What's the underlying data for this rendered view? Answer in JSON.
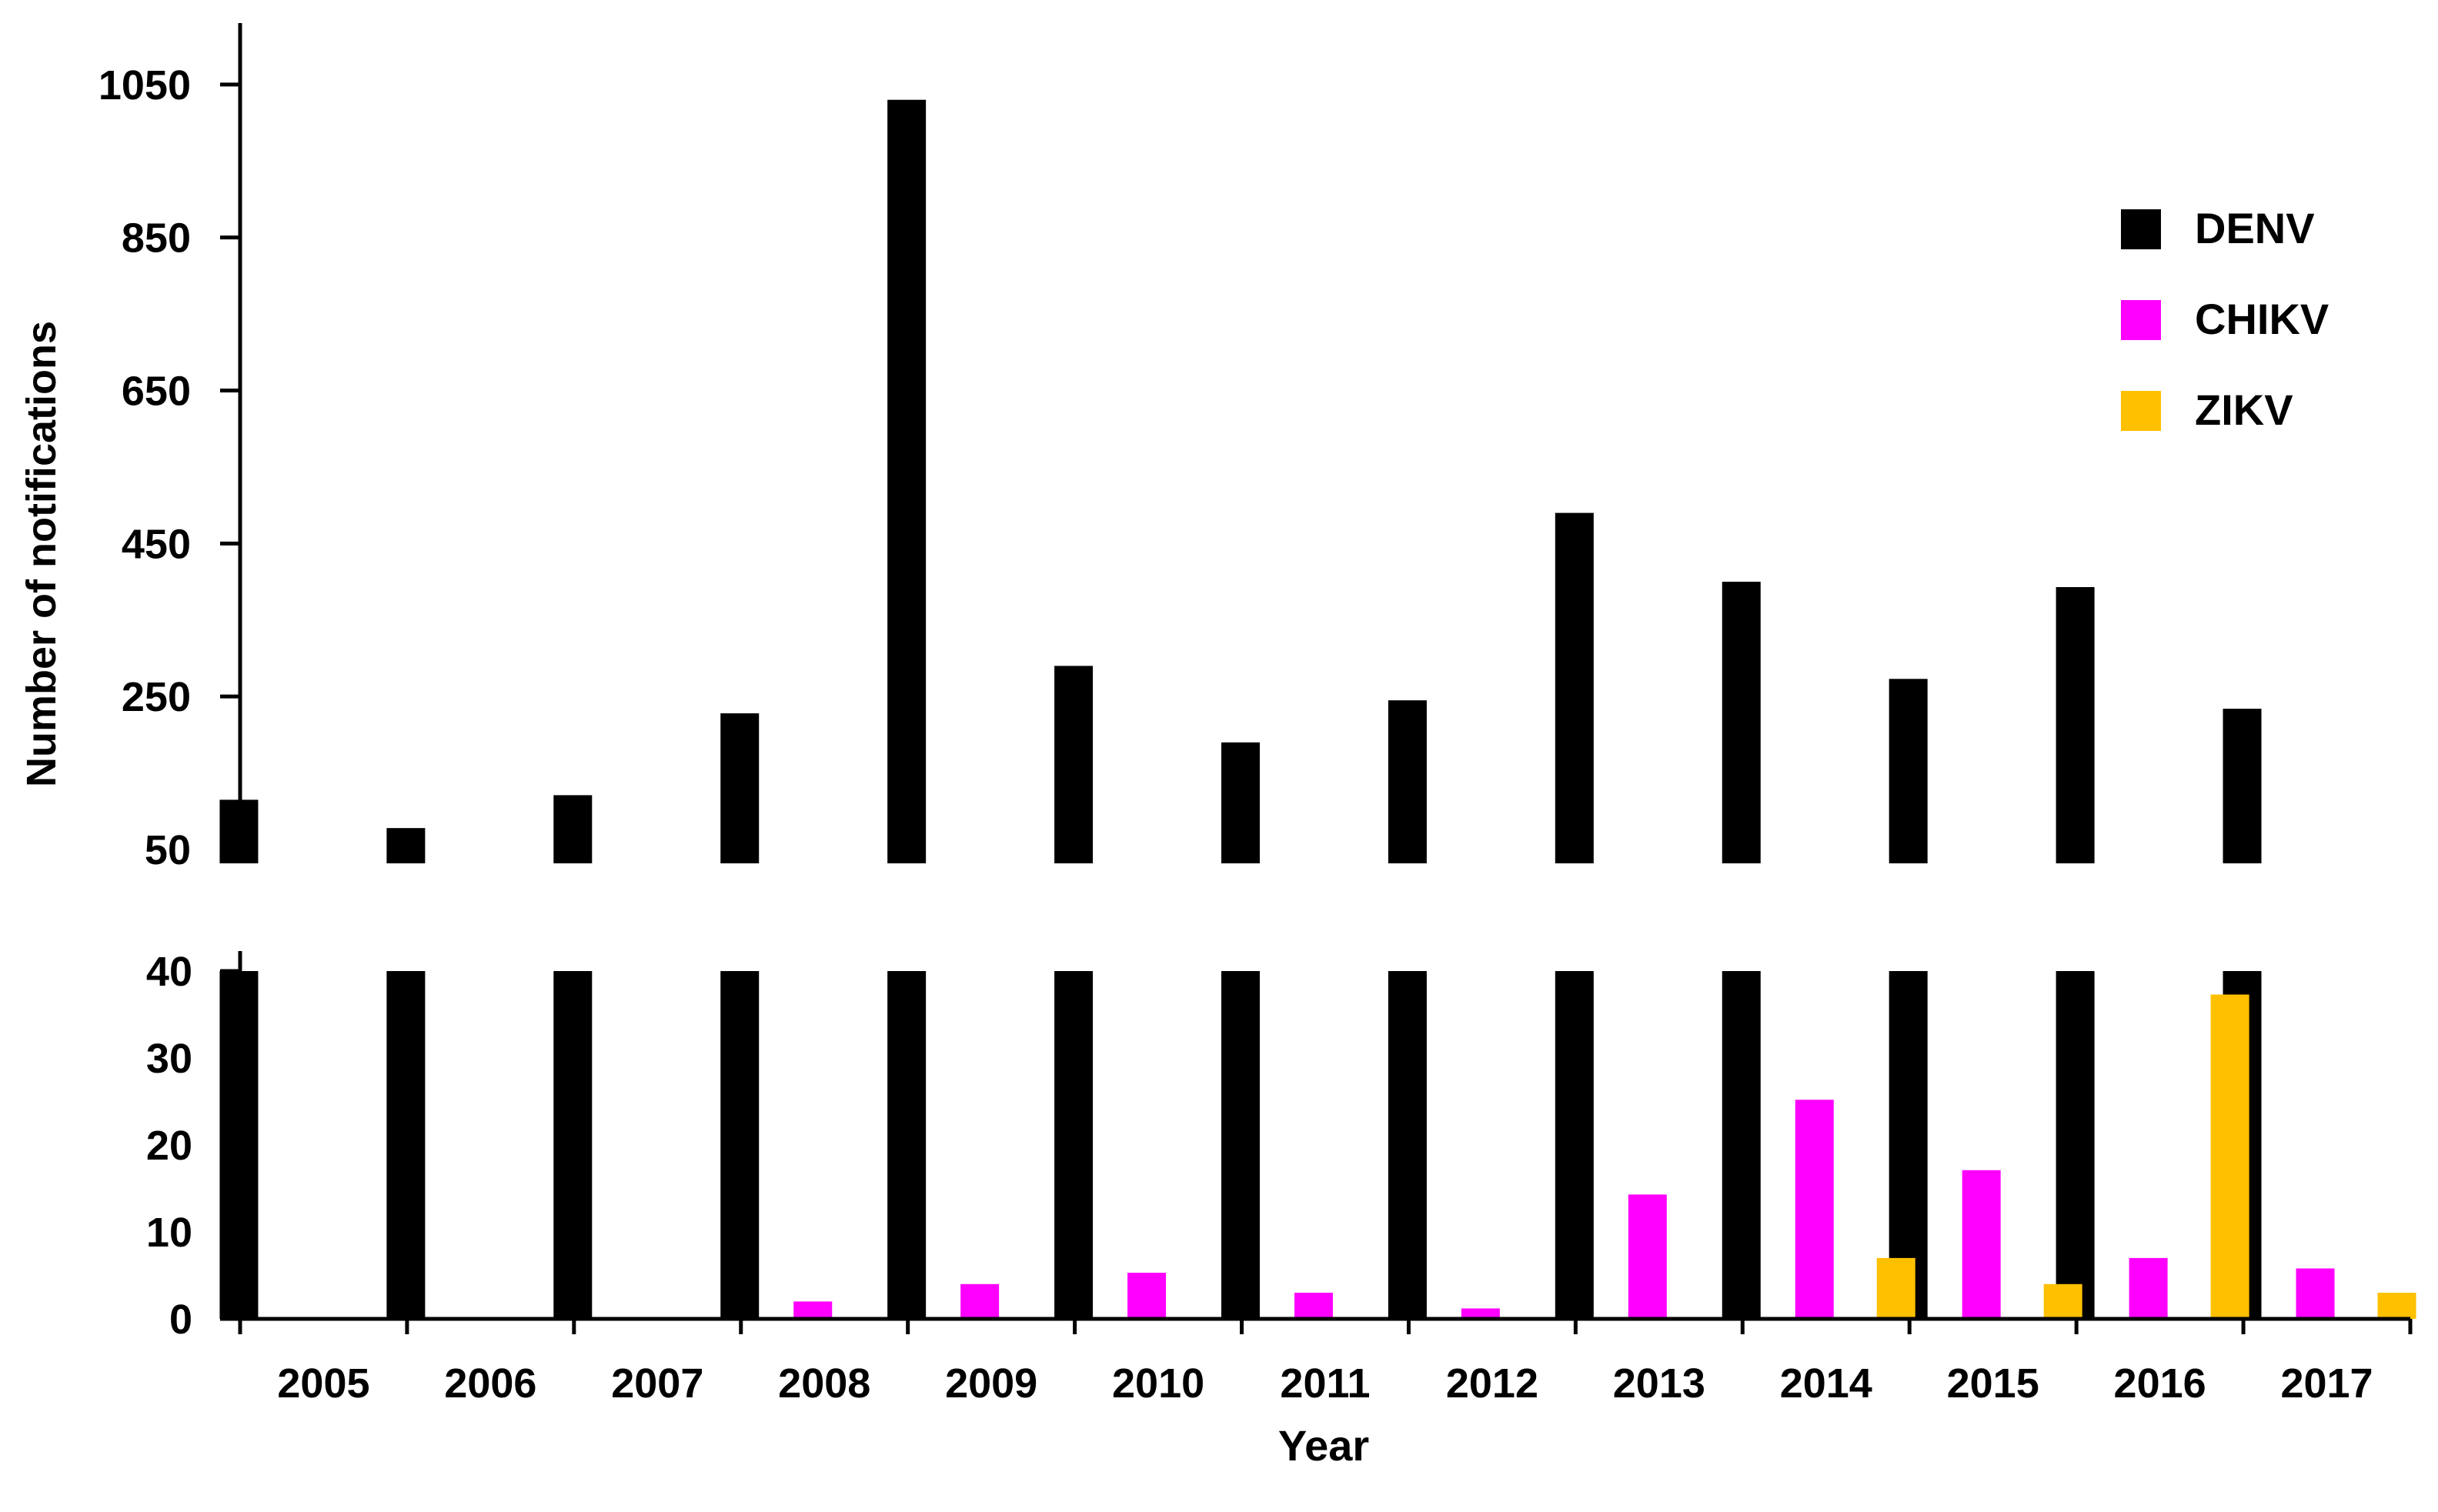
{
  "chart_data": {
    "type": "bar",
    "xlabel": "Year",
    "ylabel": "Number of notifications",
    "categories": [
      "2005",
      "2006",
      "2007",
      "2008",
      "2009",
      "2010",
      "2011",
      "2012",
      "2013",
      "2014",
      "2015",
      "2016",
      "2017"
    ],
    "series": [
      {
        "name": "DENV",
        "color": "#000000",
        "values": [
          115,
          78,
          121,
          228,
          1030,
          290,
          190,
          245,
          490,
          400,
          273,
          393,
          234
        ]
      },
      {
        "name": "CHIKV",
        "color": "#ff00ff",
        "values": [
          0,
          0,
          0,
          2,
          4,
          5.3,
          3,
          1.2,
          14.3,
          25.2,
          17.1,
          7,
          5.8
        ]
      },
      {
        "name": "ZIKV",
        "color": "#ffc000",
        "values": [
          0,
          0,
          0,
          0,
          0,
          0,
          0,
          0,
          0,
          7,
          4,
          37.3,
          3
        ]
      }
    ],
    "upper_axis": {
      "ylim": [
        50,
        1080
      ],
      "ticks": [
        50,
        250,
        450,
        650,
        850,
        1050
      ]
    },
    "lower_axis": {
      "ylim": [
        0,
        40
      ],
      "ticks": [
        0,
        10,
        20,
        30,
        40
      ]
    },
    "legend_position": "top-right",
    "grid": false
  }
}
